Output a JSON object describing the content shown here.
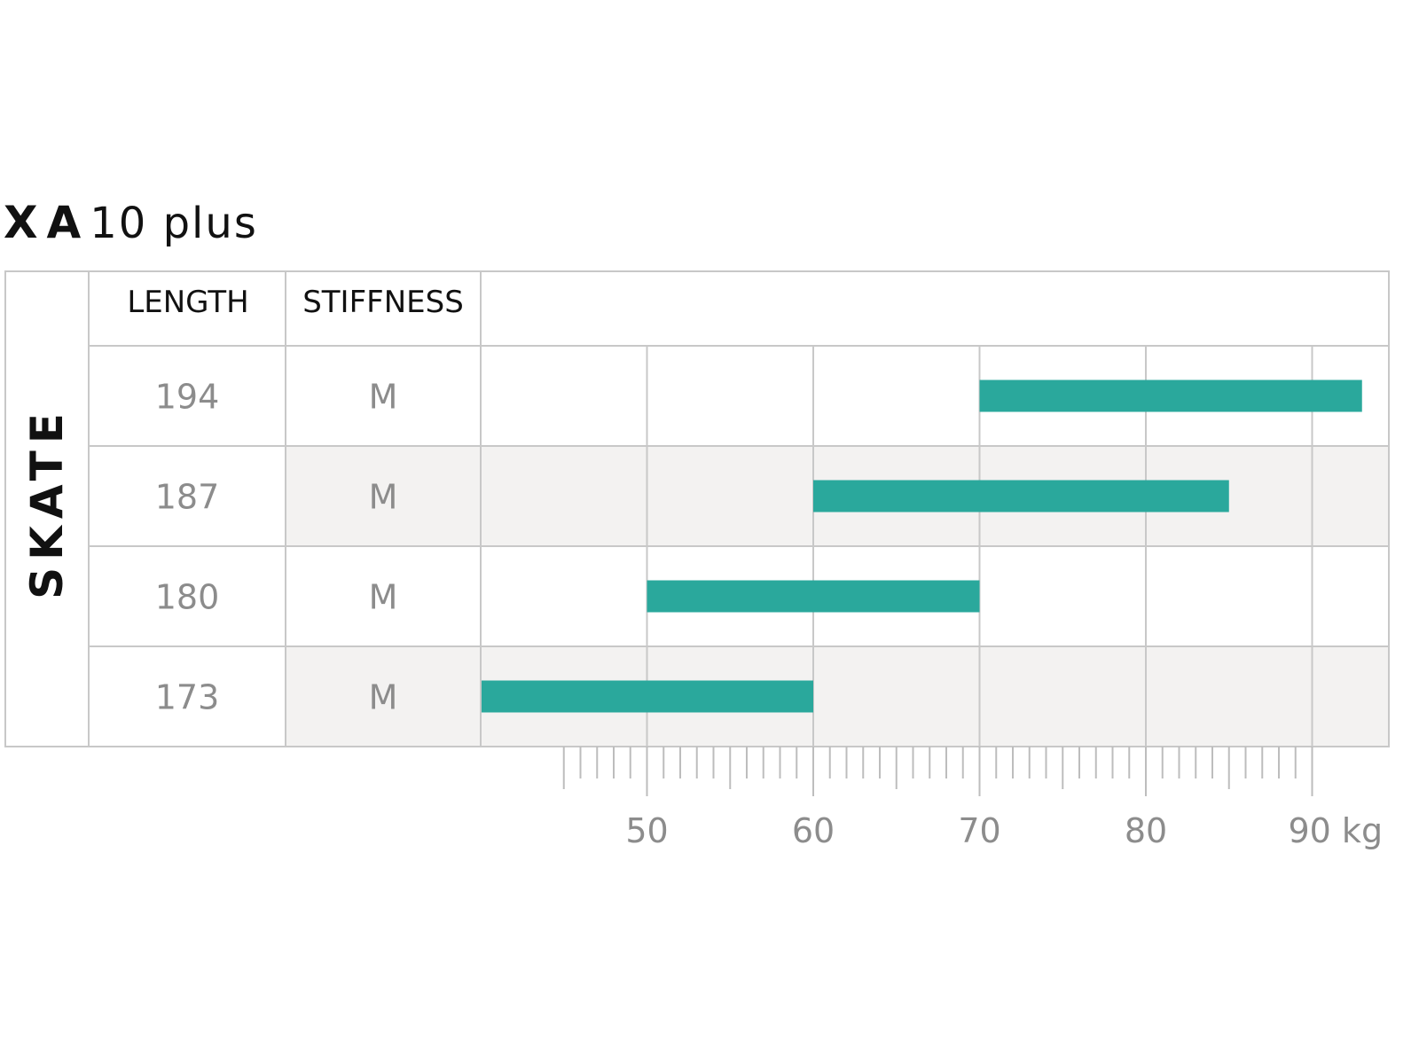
{
  "title": {
    "bold": "XA",
    "light": "10 plus"
  },
  "section_label": "SKATE",
  "columns": {
    "length": "LENGTH",
    "stiffness": "STIFFNESS"
  },
  "rows": [
    {
      "length": "194",
      "stiffness": "M"
    },
    {
      "length": "187",
      "stiffness": "M"
    },
    {
      "length": "180",
      "stiffness": "M"
    },
    {
      "length": "173",
      "stiffness": "M"
    }
  ],
  "colors": {
    "bar": "#2aa89c",
    "shaded_row": "#f3f2f1"
  },
  "chart_data": {
    "type": "bar",
    "orientation": "horizontal",
    "unit": "kg",
    "categories": [
      "194",
      "187",
      "180",
      "173"
    ],
    "ranges": [
      [
        70,
        93
      ],
      [
        60,
        85
      ],
      [
        50,
        70
      ],
      [
        40,
        60
      ]
    ],
    "xlim": [
      40,
      95
    ],
    "major_ticks": [
      50,
      60,
      70,
      80,
      90
    ],
    "tick_labels": [
      "50",
      "60",
      "70",
      "80",
      "90 kg"
    ],
    "minor_tick_start": 45,
    "minor_tick_end": 89,
    "grid": true
  }
}
